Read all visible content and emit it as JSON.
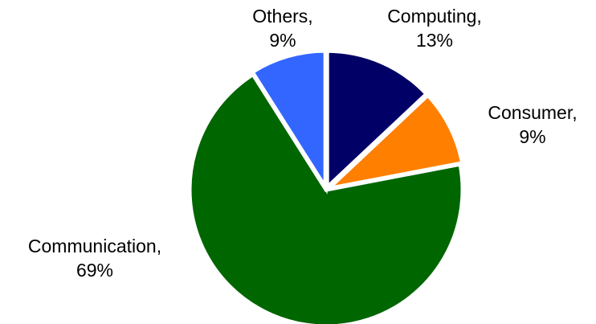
{
  "chart_data": {
    "type": "pie",
    "title": "",
    "legend": "none",
    "slices": [
      {
        "name": "Computing",
        "value": 13,
        "label": "13%",
        "color": "#000066"
      },
      {
        "name": "Consumer",
        "value": 9,
        "label": "9%",
        "color": "#ff7f00"
      },
      {
        "name": "Communication",
        "value": 69,
        "label": "69%",
        "color": "#006600"
      },
      {
        "name": "Others",
        "value": 9,
        "label": "9%",
        "color": "#3366ff"
      }
    ]
  }
}
